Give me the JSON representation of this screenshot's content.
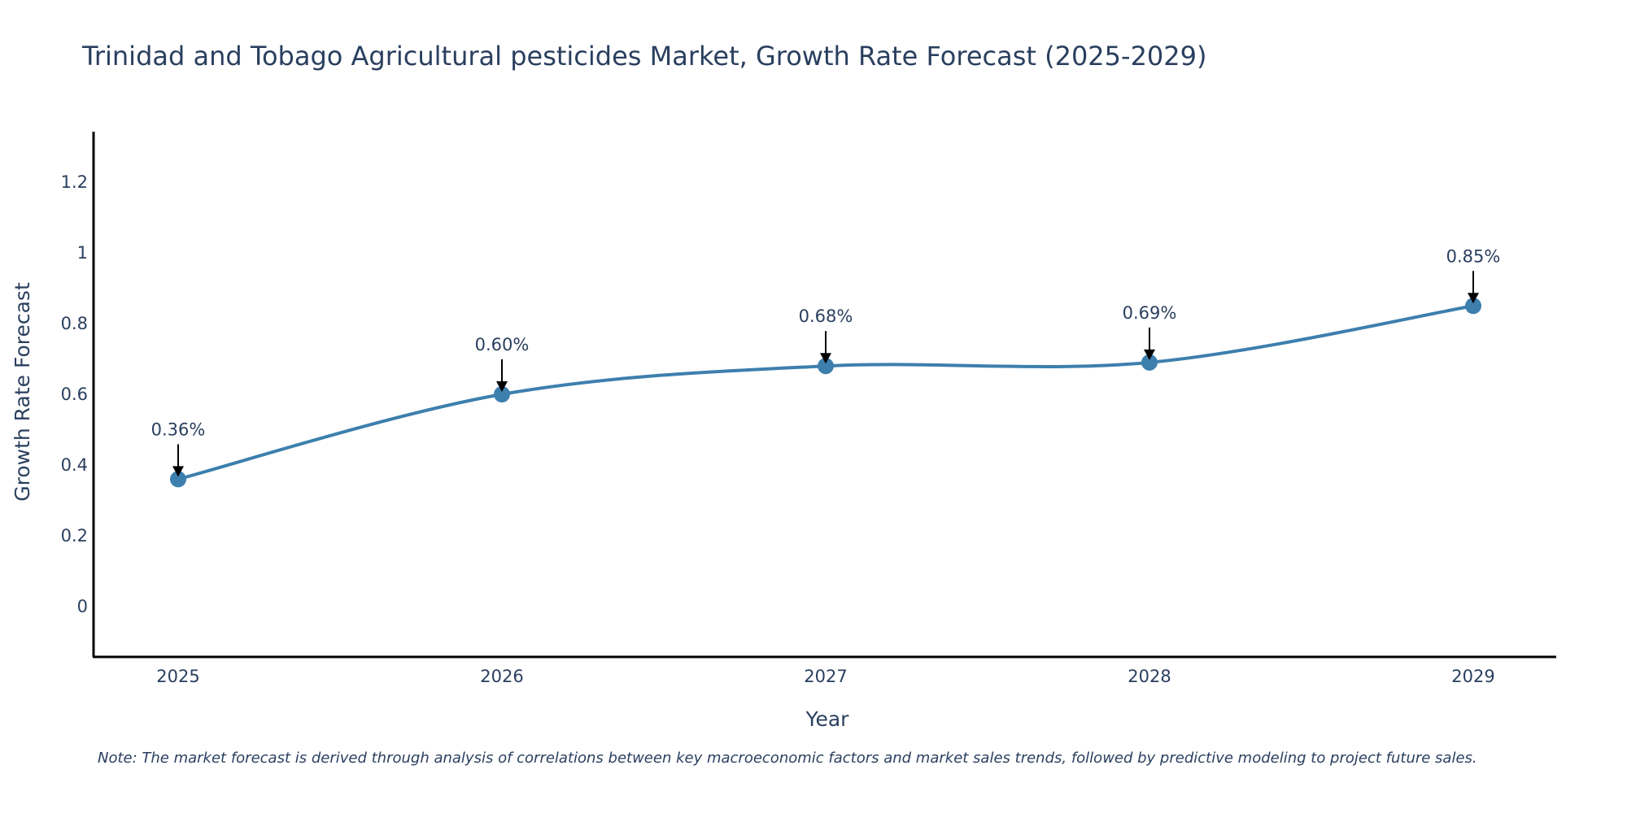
{
  "chart_data": {
    "type": "line",
    "title": "Trinidad and Tobago Agricultural pesticides Market, Growth Rate Forecast (2025-2029)",
    "xlabel": "Year",
    "ylabel": "Growth Rate Forecast",
    "categories": [
      "2025",
      "2026",
      "2027",
      "2028",
      "2029"
    ],
    "series": [
      {
        "name": "Growth Rate Forecast",
        "values": [
          0.36,
          0.6,
          0.68,
          0.69,
          0.85
        ],
        "labels": [
          "0.36%",
          "0.60%",
          "0.68%",
          "0.69%",
          "0.85%"
        ]
      }
    ],
    "ylim": [
      -0.14,
      1.35
    ],
    "yticks": [
      0,
      0.2,
      0.4,
      0.6,
      0.8,
      1,
      1.2
    ],
    "ytick_labels": [
      "0",
      "0.2",
      "0.4",
      "0.6",
      "0.8",
      "1",
      "1.2"
    ],
    "grid": false,
    "line_color": "#3d7fad",
    "marker_color": "#3d7fad",
    "arrow_color": "#000000",
    "note": "Note: The market forecast is derived through analysis of correlations between key macroeconomic factors and market sales trends, followed by predictive modeling to project future sales."
  }
}
